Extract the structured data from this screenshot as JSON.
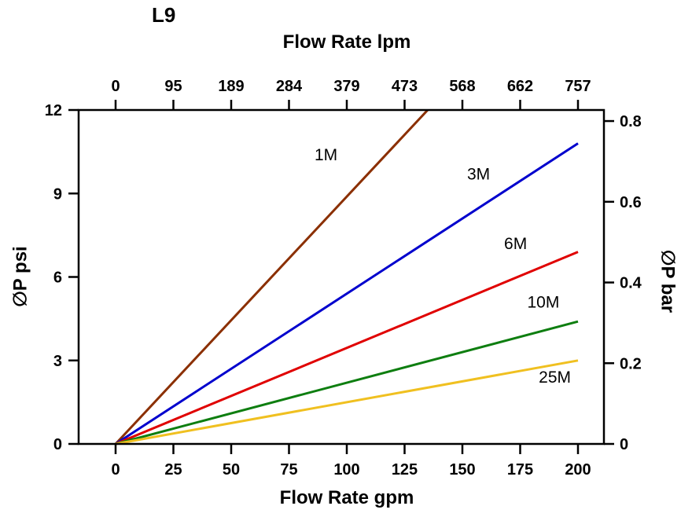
{
  "chart_data": {
    "type": "line",
    "title": "L9",
    "background": "#FFFFFF",
    "frame_color": "#000000",
    "grid": false,
    "legend": "inline-labels",
    "axes": {
      "top": {
        "label": "Flow Rate lpm",
        "ticks": [
          "0",
          "95",
          "189",
          "284",
          "379",
          "473",
          "568",
          "662",
          "757"
        ]
      },
      "bottom": {
        "label": "Flow Rate gpm",
        "ticks": [
          "0",
          "25",
          "50",
          "75",
          "100",
          "125",
          "150",
          "175",
          "200"
        ],
        "tick_step_gpm": 25
      },
      "left": {
        "label": "∅P psi",
        "ticks": [
          "0",
          "3",
          "6",
          "9",
          "12"
        ],
        "range": [
          0,
          12
        ]
      },
      "right": {
        "label": "∅P bar",
        "ticks": [
          "0",
          "0.2",
          "0.4",
          "0.6",
          "0.8"
        ],
        "psi_per_bar": 14.5038
      }
    },
    "xlim_gpm": [
      0,
      200
    ],
    "ylim_psi": [
      0,
      12
    ],
    "series": [
      {
        "name": "1M",
        "color": "#8B2F00",
        "points": [
          [
            0,
            0
          ],
          [
            135,
            12
          ]
        ],
        "label_at": [
          91,
          10.2
        ]
      },
      {
        "name": "3M",
        "color": "#0000CD",
        "points": [
          [
            0,
            0
          ],
          [
            200,
            10.8
          ]
        ],
        "label_at": [
          157,
          9.5
        ]
      },
      {
        "name": "6M",
        "color": "#E00000",
        "points": [
          [
            0,
            0
          ],
          [
            200,
            6.9
          ]
        ],
        "label_at": [
          173,
          7.0
        ]
      },
      {
        "name": "10M",
        "color": "#0E7E10",
        "points": [
          [
            0,
            0
          ],
          [
            200,
            4.4
          ]
        ],
        "label_at": [
          185,
          4.9
        ]
      },
      {
        "name": "25M",
        "color": "#F0C020",
        "points": [
          [
            0,
            0
          ],
          [
            200,
            3.0
          ]
        ],
        "label_at": [
          190,
          2.2
        ]
      }
    ]
  }
}
